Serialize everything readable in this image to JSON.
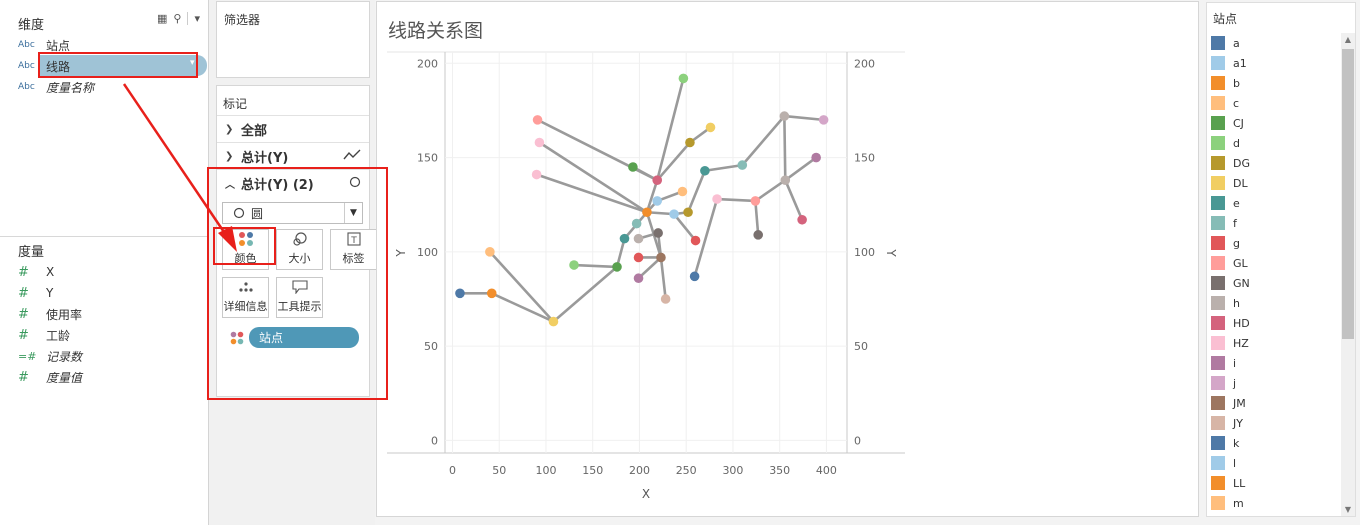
{
  "dimensions": {
    "title": "维度",
    "fields": [
      {
        "type": "Abc",
        "name": "站点",
        "italic": false
      },
      {
        "type": "Abc",
        "name": "线路",
        "italic": false
      },
      {
        "type": "Abc",
        "name": "度量名称",
        "italic": true
      }
    ]
  },
  "measures": {
    "title": "度量",
    "fields": [
      {
        "type": "#",
        "name": "X",
        "italic": false
      },
      {
        "type": "#",
        "name": "Y",
        "italic": false
      },
      {
        "type": "#",
        "name": "使用率",
        "italic": false
      },
      {
        "type": "#",
        "name": "工龄",
        "italic": false
      },
      {
        "type": "=#",
        "name": "记录数",
        "italic": true
      },
      {
        "type": "#",
        "name": "度量值",
        "italic": true
      }
    ]
  },
  "filters": {
    "title": "筛选器"
  },
  "marks": {
    "title": "标记",
    "rows": [
      "全部",
      "总计(Y)",
      "总计(Y) (2)"
    ],
    "mark_type": "圆",
    "tiles": [
      "颜色",
      "大小",
      "标签",
      "详细信息",
      "工具提示"
    ],
    "pill_label": "站点"
  },
  "chart": {
    "title": "线路关系图"
  },
  "chart_data": {
    "type": "scatter",
    "xlabel": "X",
    "ylabel": "Y",
    "xticks": [
      0,
      50,
      100,
      150,
      200,
      250,
      300,
      350,
      400
    ],
    "yticks": [
      0,
      50,
      100,
      150,
      200
    ],
    "xlim": [
      -8,
      422
    ],
    "ylim": [
      -3,
      206
    ],
    "grid": true,
    "points": [
      {
        "x": 8,
        "y": 78,
        "c": "#4e79a7"
      },
      {
        "x": 42,
        "y": 78,
        "c": "#f28e2b"
      },
      {
        "x": 40,
        "y": 100,
        "c": "#ffbe7d"
      },
      {
        "x": 108,
        "y": 63,
        "c": "#f1ce63"
      },
      {
        "x": 130,
        "y": 93,
        "c": "#8cd17d"
      },
      {
        "x": 176,
        "y": 92,
        "c": "#59a14f"
      },
      {
        "x": 184,
        "y": 107,
        "c": "#499894"
      },
      {
        "x": 197,
        "y": 115,
        "c": "#86bcb6"
      },
      {
        "x": 199,
        "y": 97,
        "c": "#e15759"
      },
      {
        "x": 199,
        "y": 86,
        "c": "#b07aa1"
      },
      {
        "x": 199,
        "y": 107,
        "c": "#bab0ac"
      },
      {
        "x": 208,
        "y": 121,
        "c": "#f28e2b"
      },
      {
        "x": 220,
        "y": 110,
        "c": "#79706e"
      },
      {
        "x": 223,
        "y": 97,
        "c": "#9d7660"
      },
      {
        "x": 228,
        "y": 75,
        "c": "#d7b5a6"
      },
      {
        "x": 219,
        "y": 127,
        "c": "#a0cbe8"
      },
      {
        "x": 219,
        "y": 138,
        "c": "#d4637d"
      },
      {
        "x": 193,
        "y": 145,
        "c": "#59a14f"
      },
      {
        "x": 247,
        "y": 192,
        "c": "#8cd17d"
      },
      {
        "x": 254,
        "y": 158,
        "c": "#b6992d"
      },
      {
        "x": 276,
        "y": 166,
        "c": "#f1ce63"
      },
      {
        "x": 246,
        "y": 132,
        "c": "#ffbe7d"
      },
      {
        "x": 252,
        "y": 121,
        "c": "#b6992d"
      },
      {
        "x": 237,
        "y": 120,
        "c": "#a0cbe8"
      },
      {
        "x": 260,
        "y": 106,
        "c": "#e15759"
      },
      {
        "x": 259,
        "y": 87,
        "c": "#4e79a7"
      },
      {
        "x": 270,
        "y": 143,
        "c": "#499894"
      },
      {
        "x": 283,
        "y": 128,
        "c": "#fabfd2"
      },
      {
        "x": 310,
        "y": 146,
        "c": "#86bcb6"
      },
      {
        "x": 324,
        "y": 127,
        "c": "#ff9d9a"
      },
      {
        "x": 327,
        "y": 109,
        "c": "#79706e"
      },
      {
        "x": 355,
        "y": 172,
        "c": "#bab0ac"
      },
      {
        "x": 356,
        "y": 138,
        "c": "#bab0ac"
      },
      {
        "x": 389,
        "y": 150,
        "c": "#b07aa1"
      },
      {
        "x": 374,
        "y": 117,
        "c": "#d4637d"
      },
      {
        "x": 397,
        "y": 170,
        "c": "#d4a6c8"
      },
      {
        "x": 91,
        "y": 170,
        "c": "#ff9d9a"
      },
      {
        "x": 93,
        "y": 158,
        "c": "#fabfd2"
      },
      {
        "x": 90,
        "y": 141,
        "c": "#fabfd2"
      }
    ],
    "lines": [
      [
        [
          8,
          78
        ],
        [
          42,
          78
        ],
        [
          108,
          63
        ],
        [
          176,
          92
        ],
        [
          184,
          107
        ],
        [
          208,
          121
        ],
        [
          219,
          138
        ],
        [
          247,
          192
        ]
      ],
      [
        [
          40,
          100
        ],
        [
          108,
          63
        ]
      ],
      [
        [
          130,
          93
        ],
        [
          176,
          92
        ]
      ],
      [
        [
          91,
          170
        ],
        [
          219,
          138
        ],
        [
          254,
          158
        ],
        [
          276,
          166
        ]
      ],
      [
        [
          93,
          158
        ],
        [
          208,
          121
        ],
        [
          237,
          120
        ],
        [
          252,
          121
        ],
        [
          270,
          143
        ],
        [
          310,
          146
        ],
        [
          355,
          172
        ],
        [
          397,
          170
        ]
      ],
      [
        [
          90,
          141
        ],
        [
          208,
          121
        ],
        [
          219,
          127
        ],
        [
          246,
          132
        ]
      ],
      [
        [
          193,
          145
        ],
        [
          219,
          138
        ]
      ],
      [
        [
          199,
          107
        ],
        [
          220,
          110
        ],
        [
          223,
          97
        ],
        [
          228,
          75
        ]
      ],
      [
        [
          199,
          97
        ],
        [
          223,
          97
        ]
      ],
      [
        [
          199,
          86
        ],
        [
          223,
          97
        ]
      ],
      [
        [
          208,
          121
        ],
        [
          223,
          97
        ]
      ],
      [
        [
          237,
          120
        ],
        [
          260,
          106
        ]
      ],
      [
        [
          259,
          87
        ],
        [
          283,
          128
        ],
        [
          324,
          127
        ],
        [
          327,
          109
        ]
      ],
      [
        [
          324,
          127
        ],
        [
          356,
          138
        ],
        [
          389,
          150
        ]
      ],
      [
        [
          355,
          172
        ],
        [
          356,
          138
        ],
        [
          374,
          117
        ]
      ]
    ]
  },
  "legend": {
    "title": "站点",
    "items": [
      {
        "label": "a",
        "color": "#4e79a7"
      },
      {
        "label": "a1",
        "color": "#a0cbe8"
      },
      {
        "label": "b",
        "color": "#f28e2b"
      },
      {
        "label": "c",
        "color": "#ffbe7d"
      },
      {
        "label": "CJ",
        "color": "#59a14f"
      },
      {
        "label": "d",
        "color": "#8cd17d"
      },
      {
        "label": "DG",
        "color": "#b6992d"
      },
      {
        "label": "DL",
        "color": "#f1ce63"
      },
      {
        "label": "e",
        "color": "#499894"
      },
      {
        "label": "f",
        "color": "#86bcb6"
      },
      {
        "label": "g",
        "color": "#e15759"
      },
      {
        "label": "GL",
        "color": "#ff9d9a"
      },
      {
        "label": "GN",
        "color": "#79706e"
      },
      {
        "label": "h",
        "color": "#bab0ac"
      },
      {
        "label": "HD",
        "color": "#d4637d"
      },
      {
        "label": "HZ",
        "color": "#fabfd2"
      },
      {
        "label": "i",
        "color": "#b07aa1"
      },
      {
        "label": "j",
        "color": "#d4a6c8"
      },
      {
        "label": "JM",
        "color": "#9d7660"
      },
      {
        "label": "JY",
        "color": "#d7b5a6"
      },
      {
        "label": "k",
        "color": "#4e79a7"
      },
      {
        "label": "l",
        "color": "#a0cbe8"
      },
      {
        "label": "LL",
        "color": "#f28e2b"
      },
      {
        "label": "m",
        "color": "#ffbe7d"
      }
    ]
  },
  "colors": {
    "accent": "#4f98b7",
    "selected": "#9fc3d6",
    "annotation": "#e8201b",
    "line": "#9a9a9a"
  }
}
